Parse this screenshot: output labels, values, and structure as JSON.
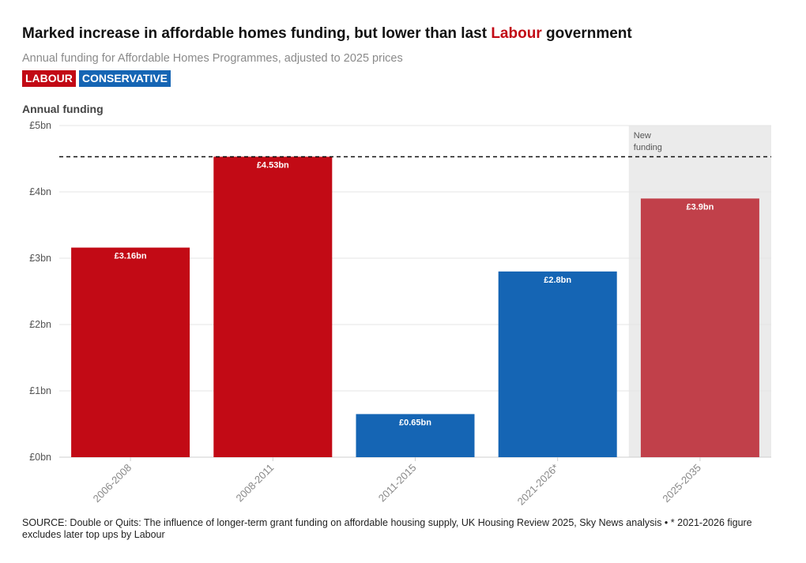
{
  "header": {
    "title_before": "Marked increase in affordable homes funding, but lower than last ",
    "title_highlight": "Labour",
    "title_after": " government",
    "subtitle": "Annual funding for Affordable Homes Programmes, adjusted to 2025 prices"
  },
  "legend": [
    {
      "label": "LABOUR",
      "color": "#c20a15"
    },
    {
      "label": "CONSERVATIVE",
      "color": "#1565b4"
    }
  ],
  "colors": {
    "labour": "#c20a15",
    "conservative": "#1565b4",
    "labour_new": "#c1404a",
    "shade": "#ebebeb"
  },
  "chart_data": {
    "type": "bar",
    "title": "Marked increase in affordable homes funding, but lower than last Labour government",
    "ylabel": "Annual funding",
    "xlabel": "",
    "ylim": [
      0,
      5
    ],
    "yticks": [
      0,
      1,
      2,
      3,
      4,
      5
    ],
    "ytick_labels": [
      "£0bn",
      "£1bn",
      "£2bn",
      "£3bn",
      "£4bn",
      "£5bn"
    ],
    "categories": [
      "2006-2008",
      "2008-2011",
      "2011-2015",
      "2021-2026*",
      "2025-2035"
    ],
    "values": [
      3.16,
      4.53,
      0.65,
      2.8,
      3.9
    ],
    "value_labels": [
      "£3.16bn",
      "£4.53bn",
      "£0.65bn",
      "£2.8bn",
      "£3.9bn"
    ],
    "party": [
      "labour",
      "labour",
      "conservative",
      "conservative",
      "labour_new"
    ],
    "reference_line": 4.53,
    "shaded_region": {
      "category": "2025-2035",
      "label_lines": [
        "New",
        "funding"
      ]
    },
    "grid": true
  },
  "source": "SOURCE: Double or Quits: The influence of longer-term grant funding on affordable housing supply, UK Housing Review 2025, Sky News analysis • * 2021-2026 figure excludes later top ups by Labour"
}
